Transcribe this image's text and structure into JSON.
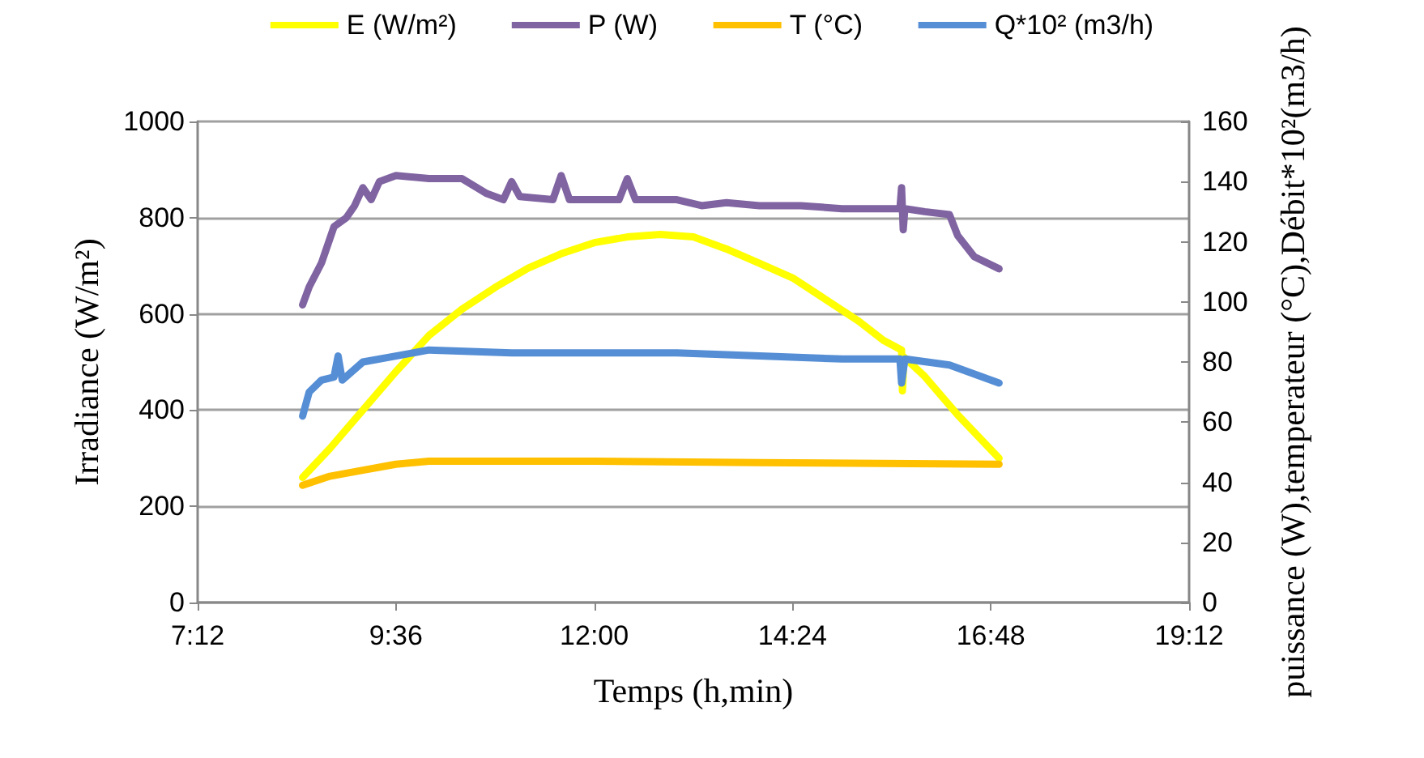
{
  "chart_data": {
    "type": "line",
    "xlabel": "Temps (h,min)",
    "ylabel": "Irradiance (W/m²)",
    "y2label": "puissance (W),temperateur (°C),Débit*10²(m3/h)",
    "xlim": [
      7.2,
      19.2
    ],
    "xticks": [
      {
        "value": 7.2,
        "label": "7:12"
      },
      {
        "value": 9.6,
        "label": "9:36"
      },
      {
        "value": 12,
        "label": "12:00"
      },
      {
        "value": 14.4,
        "label": "14:24"
      },
      {
        "value": 16.8,
        "label": "16:48"
      },
      {
        "value": 19.2,
        "label": "19:12"
      }
    ],
    "ylim": [
      0,
      1000
    ],
    "yticks": [
      0,
      200,
      400,
      600,
      800,
      1000
    ],
    "y2lim": [
      0,
      160
    ],
    "y2ticks": [
      0,
      20,
      40,
      60,
      80,
      100,
      120,
      140,
      160
    ],
    "grid": "y",
    "legend": "top",
    "marker": "none",
    "line_style": "solid",
    "series": [
      {
        "name": "E (W/m²)",
        "color": "#ffff00",
        "x": [
          8.47,
          8.8,
          9.2,
          9.6,
          10.0,
          10.4,
          10.8,
          11.2,
          11.6,
          12.0,
          12.4,
          12.8,
          13.2,
          13.6,
          14.0,
          14.4,
          14.8,
          15.2,
          15.5,
          15.72,
          15.73,
          15.75,
          16.0,
          16.4,
          16.9
        ],
        "values": [
          260,
          320,
          400,
          480,
          555,
          610,
          655,
          695,
          725,
          748,
          760,
          765,
          760,
          735,
          705,
          675,
          630,
          585,
          545,
          525,
          440,
          510,
          470,
          390,
          300
        ]
      },
      {
        "name": "P (W)",
        "color": "#8064a2",
        "axis": "y2",
        "x": [
          8.47,
          8.55,
          8.7,
          8.85,
          9.0,
          9.1,
          9.2,
          9.3,
          9.4,
          9.6,
          10.0,
          10.4,
          10.7,
          10.9,
          11.0,
          11.1,
          11.5,
          11.6,
          11.7,
          12.0,
          12.3,
          12.4,
          12.5,
          13.0,
          13.3,
          13.6,
          14.0,
          14.5,
          15.0,
          15.7,
          15.72,
          15.74,
          15.76,
          16.0,
          16.3,
          16.4,
          16.6,
          16.9
        ],
        "values": [
          99,
          105,
          113,
          125,
          128,
          132,
          138,
          134,
          140,
          142,
          141,
          141,
          136,
          134,
          140,
          135,
          134,
          142,
          134,
          134,
          134,
          141,
          134,
          134,
          132,
          133,
          132,
          132,
          131,
          131,
          138,
          124,
          131,
          130,
          129,
          122,
          115,
          111
        ]
      },
      {
        "name": "T (°C)",
        "color": "#ffc000",
        "axis": "y2",
        "x": [
          8.47,
          8.8,
          9.2,
          9.6,
          10.0,
          12.0,
          14.0,
          16.9
        ],
        "values": [
          39,
          42,
          44,
          46,
          47,
          47,
          46.5,
          46
        ]
      },
      {
        "name": "Q*10² (m3/h)",
        "color": "#558ed5",
        "axis": "y2",
        "x": [
          8.47,
          8.55,
          8.7,
          8.85,
          8.9,
          8.95,
          9.2,
          9.6,
          10.0,
          11.0,
          12.0,
          13.0,
          14.0,
          15.0,
          15.7,
          15.72,
          15.76,
          16.3,
          16.9
        ],
        "values": [
          62,
          70,
          74,
          75,
          82,
          74,
          80,
          82,
          84,
          83,
          83,
          83,
          82,
          81,
          81,
          73,
          81,
          79,
          73
        ]
      }
    ]
  }
}
